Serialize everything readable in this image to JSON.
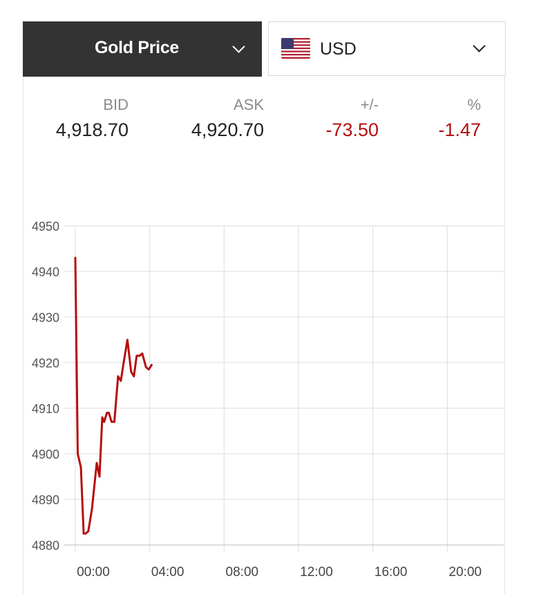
{
  "metal_selector": {
    "label": "Gold Price",
    "icon": "chevron-down-icon"
  },
  "currency_selector": {
    "label": "USD",
    "flag": "us-flag-icon",
    "icon": "chevron-down-icon"
  },
  "quote": {
    "headers": [
      "BID",
      "ASK",
      "+/-",
      "%"
    ],
    "values": [
      "4,918.70",
      "4,920.70",
      "-73.50",
      "-1.47"
    ]
  },
  "colors": {
    "header_bg": "#333333",
    "negative": "#b50d0d",
    "line": "#b50d0d",
    "grid": "#dcdcdc"
  },
  "chart_data": {
    "type": "line",
    "title": "",
    "xlabel": "",
    "ylabel": "",
    "grid": true,
    "xlim": [
      0,
      24
    ],
    "ylim": [
      4880,
      4950
    ],
    "x_ticks": [
      0,
      4,
      8,
      12,
      16,
      20
    ],
    "x_tick_labels": [
      "00:00",
      "04:00",
      "08:00",
      "12:00",
      "16:00",
      "20:00"
    ],
    "y_ticks": [
      4880,
      4890,
      4900,
      4910,
      4920,
      4930,
      4940,
      4950
    ],
    "y_tick_labels": [
      "4880",
      "4890",
      "4900",
      "4910",
      "4920",
      "4930",
      "4940",
      "4950"
    ],
    "series": [
      {
        "x": [
          0.0,
          0.13,
          0.3,
          0.45,
          0.55,
          0.7,
          0.9,
          1.0,
          1.15,
          1.3,
          1.45,
          1.55,
          1.7,
          1.8,
          1.95,
          2.1,
          2.3,
          2.45,
          2.6,
          2.8,
          3.0,
          3.15,
          3.3,
          3.45,
          3.6,
          3.8,
          3.95,
          4.1
        ],
        "y": [
          4943,
          4900,
          4897,
          4882.5,
          4882.5,
          4883,
          4888,
          4892,
          4898,
          4895,
          4908,
          4907,
          4909,
          4909,
          4907,
          4907,
          4917,
          4916,
          4920,
          4925,
          4918,
          4917,
          4921.5,
          4921.5,
          4922,
          4919,
          4918.5,
          4919.5
        ]
      }
    ]
  }
}
